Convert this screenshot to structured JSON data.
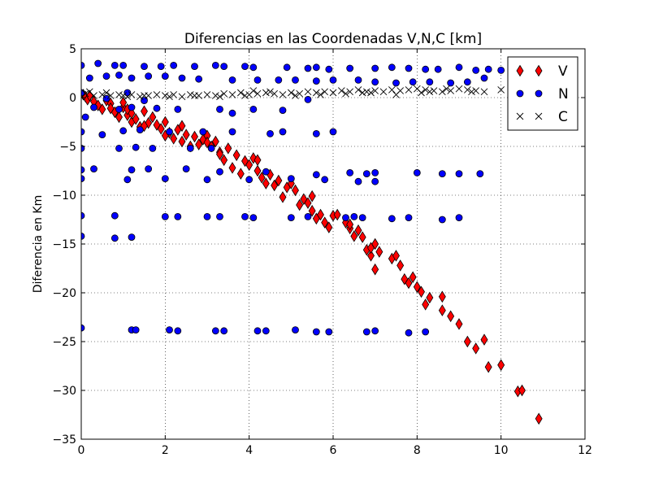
{
  "chart_data": {
    "type": "scatter",
    "title": "Diferencias en las Coordenadas V,N,C [km]",
    "xlabel": "",
    "ylabel": "Diferencia en Km",
    "xlim": [
      0,
      12
    ],
    "ylim": [
      -35,
      5
    ],
    "x_ticks": [
      0,
      2,
      4,
      6,
      8,
      10,
      12
    ],
    "y_ticks": [
      5,
      0,
      -5,
      -10,
      -15,
      -20,
      -25,
      -30,
      -35
    ],
    "x_tick_labels": [
      "0",
      "2",
      "4",
      "6",
      "8",
      "10",
      "12"
    ],
    "y_tick_labels": [
      "5",
      "0",
      "−5",
      "−10",
      "−15",
      "−20",
      "−25",
      "−30",
      "−35"
    ],
    "grid": true,
    "legend_position": "top-right",
    "series": [
      {
        "name": "V",
        "marker": "diamond",
        "color": "#ff0000",
        "points": [
          [
            0.05,
            0.3
          ],
          [
            0.1,
            0.1
          ],
          [
            0.15,
            -0.2
          ],
          [
            0.2,
            0.2
          ],
          [
            0.3,
            -0.4
          ],
          [
            0.4,
            -0.8
          ],
          [
            0.5,
            -1.2
          ],
          [
            0.6,
            -0.3
          ],
          [
            0.7,
            -0.6
          ],
          [
            0.8,
            -1.5
          ],
          [
            0.9,
            -2.0
          ],
          [
            1.0,
            -1.0
          ],
          [
            1.1,
            -1.8
          ],
          [
            1.2,
            -2.5
          ],
          [
            1.3,
            -2.2
          ],
          [
            1.4,
            -3.0
          ],
          [
            1.5,
            -1.4
          ],
          [
            1.6,
            -2.6
          ],
          [
            1.7,
            -2.0
          ],
          [
            1.8,
            -2.8
          ],
          [
            1.9,
            -3.2
          ],
          [
            2.0,
            -2.5
          ],
          [
            2.1,
            -3.6
          ],
          [
            2.2,
            -4.2
          ],
          [
            2.3,
            -3.3
          ],
          [
            2.4,
            -4.5
          ],
          [
            2.5,
            -3.8
          ],
          [
            2.6,
            -5.0
          ],
          [
            2.7,
            -4.0
          ],
          [
            2.8,
            -4.8
          ],
          [
            2.9,
            -4.3
          ],
          [
            3.0,
            -3.9
          ],
          [
            3.1,
            -5.0
          ],
          [
            3.2,
            -4.5
          ],
          [
            3.3,
            -5.6
          ],
          [
            3.4,
            -6.4
          ],
          [
            3.5,
            -5.2
          ],
          [
            3.6,
            -7.2
          ],
          [
            3.7,
            -5.9
          ],
          [
            3.8,
            -7.8
          ],
          [
            3.9,
            -6.5
          ],
          [
            4.0,
            -6.9
          ],
          [
            4.1,
            -6.2
          ],
          [
            4.2,
            -7.5
          ],
          [
            4.3,
            -8.2
          ],
          [
            4.4,
            -8.8
          ],
          [
            4.5,
            -7.9
          ],
          [
            4.6,
            -9.0
          ],
          [
            4.7,
            -8.5
          ],
          [
            4.8,
            -10.2
          ],
          [
            4.9,
            -9.2
          ],
          [
            5.0,
            -8.8
          ],
          [
            5.1,
            -9.5
          ],
          [
            5.2,
            -11.0
          ],
          [
            5.3,
            -10.4
          ],
          [
            5.4,
            -10.8
          ],
          [
            5.5,
            -11.6
          ],
          [
            5.6,
            -12.4
          ],
          [
            5.7,
            -12.0
          ],
          [
            5.8,
            -12.8
          ],
          [
            5.9,
            -13.3
          ],
          [
            6.0,
            -12.1
          ],
          [
            6.1,
            -12.0
          ],
          [
            6.3,
            -12.8
          ],
          [
            6.4,
            -13.4
          ],
          [
            6.5,
            -14.2
          ],
          [
            6.6,
            -13.6
          ],
          [
            6.7,
            -14.3
          ],
          [
            6.8,
            -15.6
          ],
          [
            6.9,
            -16.2
          ],
          [
            7.0,
            -15.0
          ],
          [
            7.1,
            -15.8
          ],
          [
            7.4,
            -16.5
          ],
          [
            7.5,
            -16.2
          ],
          [
            7.6,
            -17.2
          ],
          [
            7.7,
            -18.6
          ],
          [
            7.8,
            -19.0
          ],
          [
            7.9,
            -18.4
          ],
          [
            8.0,
            -19.4
          ],
          [
            8.2,
            -21.2
          ],
          [
            8.3,
            -20.5
          ],
          [
            8.6,
            -20.4
          ],
          [
            8.6,
            -21.8
          ],
          [
            8.8,
            -22.4
          ],
          [
            9.0,
            -23.2
          ],
          [
            9.2,
            -25.0
          ],
          [
            9.4,
            -25.7
          ],
          [
            9.6,
            -24.8
          ],
          [
            9.7,
            -27.6
          ],
          [
            10.0,
            -27.4
          ],
          [
            10.4,
            -30.1
          ],
          [
            10.5,
            -30.0
          ],
          [
            10.9,
            -32.9
          ],
          [
            1.0,
            -0.5
          ],
          [
            1.2,
            -1.6
          ],
          [
            0.7,
            -1.1
          ],
          [
            1.5,
            -2.9
          ],
          [
            2.0,
            -3.9
          ],
          [
            3.3,
            -5.8
          ],
          [
            4.2,
            -6.4
          ],
          [
            5.5,
            -10.1
          ],
          [
            6.4,
            -13.0
          ],
          [
            7.0,
            -17.6
          ],
          [
            8.1,
            -19.9
          ],
          [
            6.9,
            -15.4
          ],
          [
            3.0,
            -4.6
          ],
          [
            2.4,
            -2.9
          ],
          [
            1.1,
            -1.2
          ]
        ]
      },
      {
        "name": "N",
        "marker": "circle",
        "color": "#0000ff",
        "points": [
          [
            0.0,
            3.3
          ],
          [
            0.4,
            3.5
          ],
          [
            0.8,
            3.3
          ],
          [
            1.0,
            3.3
          ],
          [
            1.5,
            3.2
          ],
          [
            1.9,
            3.2
          ],
          [
            2.2,
            3.3
          ],
          [
            2.7,
            3.2
          ],
          [
            3.2,
            3.3
          ],
          [
            3.4,
            3.2
          ],
          [
            3.9,
            3.2
          ],
          [
            4.1,
            3.1
          ],
          [
            4.9,
            3.1
          ],
          [
            5.4,
            3.0
          ],
          [
            5.6,
            3.1
          ],
          [
            5.9,
            2.9
          ],
          [
            6.4,
            3.0
          ],
          [
            7.0,
            3.0
          ],
          [
            7.4,
            3.1
          ],
          [
            7.8,
            3.0
          ],
          [
            8.2,
            2.9
          ],
          [
            8.5,
            2.9
          ],
          [
            9.0,
            3.1
          ],
          [
            9.4,
            2.8
          ],
          [
            9.7,
            2.9
          ],
          [
            10.0,
            2.8
          ],
          [
            0.2,
            2.0
          ],
          [
            0.6,
            2.2
          ],
          [
            0.9,
            2.3
          ],
          [
            1.2,
            2.0
          ],
          [
            1.6,
            2.2
          ],
          [
            2.0,
            2.2
          ],
          [
            2.4,
            2.0
          ],
          [
            2.8,
            1.9
          ],
          [
            3.6,
            1.8
          ],
          [
            4.2,
            1.8
          ],
          [
            4.7,
            1.8
          ],
          [
            5.1,
            1.8
          ],
          [
            5.6,
            1.7
          ],
          [
            6.0,
            1.8
          ],
          [
            6.6,
            1.8
          ],
          [
            7.0,
            1.6
          ],
          [
            7.5,
            1.5
          ],
          [
            7.9,
            1.6
          ],
          [
            8.3,
            1.6
          ],
          [
            8.8,
            1.5
          ],
          [
            9.2,
            1.6
          ],
          [
            9.6,
            2.0
          ],
          [
            0.0,
            0.5
          ],
          [
            1.1,
            0.5
          ],
          [
            0.3,
            -1.0
          ],
          [
            0.9,
            -1.2
          ],
          [
            1.2,
            -1.0
          ],
          [
            1.8,
            -1.1
          ],
          [
            2.3,
            -1.2
          ],
          [
            3.3,
            -1.2
          ],
          [
            3.6,
            -1.6
          ],
          [
            4.1,
            -1.2
          ],
          [
            4.8,
            -1.3
          ],
          [
            5.4,
            -0.2
          ],
          [
            0.0,
            -3.5
          ],
          [
            0.5,
            -3.8
          ],
          [
            1.0,
            -3.4
          ],
          [
            1.4,
            -3.3
          ],
          [
            2.1,
            -3.5
          ],
          [
            2.9,
            -3.5
          ],
          [
            3.6,
            -3.5
          ],
          [
            4.5,
            -3.7
          ],
          [
            4.8,
            -3.5
          ],
          [
            5.6,
            -3.7
          ],
          [
            6.0,
            -3.5
          ],
          [
            0.0,
            -5.2
          ],
          [
            0.9,
            -5.2
          ],
          [
            1.3,
            -5.1
          ],
          [
            1.7,
            -5.2
          ],
          [
            2.6,
            -5.2
          ],
          [
            3.1,
            -5.2
          ],
          [
            0.0,
            -7.4
          ],
          [
            0.3,
            -7.3
          ],
          [
            1.2,
            -7.4
          ],
          [
            1.6,
            -7.3
          ],
          [
            2.5,
            -7.3
          ],
          [
            3.3,
            -7.6
          ],
          [
            4.4,
            -7.6
          ],
          [
            5.6,
            -7.9
          ],
          [
            6.4,
            -7.7
          ],
          [
            6.8,
            -7.8
          ],
          [
            7.0,
            -7.7
          ],
          [
            8.0,
            -7.7
          ],
          [
            8.6,
            -7.8
          ],
          [
            9.0,
            -7.8
          ],
          [
            9.5,
            -7.8
          ],
          [
            0.0,
            -8.3
          ],
          [
            1.1,
            -8.4
          ],
          [
            2.0,
            -8.3
          ],
          [
            3.0,
            -8.4
          ],
          [
            4.0,
            -8.4
          ],
          [
            5.0,
            -8.3
          ],
          [
            5.8,
            -8.4
          ],
          [
            6.6,
            -8.6
          ],
          [
            7.0,
            -8.6
          ],
          [
            0.0,
            -12.1
          ],
          [
            0.8,
            -12.1
          ],
          [
            2.0,
            -12.2
          ],
          [
            2.3,
            -12.2
          ],
          [
            3.0,
            -12.2
          ],
          [
            3.3,
            -12.2
          ],
          [
            3.9,
            -12.2
          ],
          [
            4.1,
            -12.3
          ],
          [
            5.0,
            -12.3
          ],
          [
            5.4,
            -12.2
          ],
          [
            6.3,
            -12.3
          ],
          [
            6.5,
            -12.2
          ],
          [
            6.7,
            -12.3
          ],
          [
            7.4,
            -12.4
          ],
          [
            7.8,
            -12.3
          ],
          [
            8.6,
            -12.5
          ],
          [
            9.0,
            -12.3
          ],
          [
            0.0,
            -14.2
          ],
          [
            0.8,
            -14.4
          ],
          [
            1.2,
            -14.3
          ],
          [
            0.0,
            -23.6
          ],
          [
            1.2,
            -23.8
          ],
          [
            1.3,
            -23.8
          ],
          [
            2.1,
            -23.8
          ],
          [
            2.3,
            -23.9
          ],
          [
            3.2,
            -23.9
          ],
          [
            3.4,
            -23.9
          ],
          [
            4.2,
            -23.9
          ],
          [
            4.4,
            -23.9
          ],
          [
            5.1,
            -23.8
          ],
          [
            5.6,
            -24.0
          ],
          [
            5.9,
            -24.0
          ],
          [
            6.8,
            -24.0
          ],
          [
            7.0,
            -23.9
          ],
          [
            7.8,
            -24.1
          ],
          [
            8.2,
            -24.0
          ],
          [
            0.1,
            -2.0
          ],
          [
            0.6,
            -0.1
          ],
          [
            1.5,
            -0.3
          ]
        ]
      },
      {
        "name": "C",
        "marker": "x",
        "color": "#000000",
        "points": [
          [
            0.1,
            0.4
          ],
          [
            0.3,
            0.2
          ],
          [
            0.5,
            0.3
          ],
          [
            0.7,
            0.2
          ],
          [
            0.9,
            0.3
          ],
          [
            1.0,
            0.2
          ],
          [
            1.2,
            0.3
          ],
          [
            1.4,
            0.1
          ],
          [
            1.6,
            0.2
          ],
          [
            1.8,
            0.3
          ],
          [
            2.0,
            0.2
          ],
          [
            2.2,
            0.3
          ],
          [
            2.4,
            0.1
          ],
          [
            2.6,
            0.3
          ],
          [
            2.8,
            0.2
          ],
          [
            3.0,
            0.3
          ],
          [
            3.2,
            0.2
          ],
          [
            3.4,
            0.4
          ],
          [
            3.6,
            0.3
          ],
          [
            3.8,
            0.5
          ],
          [
            4.0,
            0.3
          ],
          [
            4.2,
            0.4
          ],
          [
            4.4,
            0.5
          ],
          [
            4.6,
            0.4
          ],
          [
            4.8,
            0.3
          ],
          [
            5.0,
            0.5
          ],
          [
            5.2,
            0.4
          ],
          [
            5.4,
            0.6
          ],
          [
            5.6,
            0.5
          ],
          [
            5.8,
            0.6
          ],
          [
            6.0,
            0.5
          ],
          [
            6.2,
            0.7
          ],
          [
            6.4,
            0.6
          ],
          [
            6.6,
            0.8
          ],
          [
            6.8,
            0.6
          ],
          [
            7.0,
            0.7
          ],
          [
            7.2,
            0.6
          ],
          [
            7.4,
            0.8
          ],
          [
            7.6,
            0.7
          ],
          [
            7.8,
            0.8
          ],
          [
            8.0,
            0.9
          ],
          [
            8.2,
            0.8
          ],
          [
            8.4,
            0.7
          ],
          [
            8.6,
            0.6
          ],
          [
            8.8,
            0.7
          ],
          [
            9.0,
            0.9
          ],
          [
            9.2,
            0.8
          ],
          [
            9.4,
            0.7
          ],
          [
            9.6,
            0.6
          ],
          [
            10.0,
            0.8
          ],
          [
            0.2,
            0.6
          ],
          [
            0.6,
            0.5
          ],
          [
            1.1,
            0.1
          ],
          [
            1.5,
            0.2
          ],
          [
            2.1,
            0.1
          ],
          [
            2.7,
            0.2
          ],
          [
            3.3,
            0.1
          ],
          [
            3.9,
            0.2
          ],
          [
            4.5,
            0.6
          ],
          [
            5.1,
            0.2
          ],
          [
            5.7,
            0.3
          ],
          [
            6.3,
            0.4
          ],
          [
            6.9,
            0.5
          ],
          [
            7.5,
            0.3
          ],
          [
            8.1,
            0.5
          ],
          [
            8.7,
            0.9
          ],
          [
            9.3,
            0.6
          ],
          [
            4.1,
            0.7
          ],
          [
            6.7,
            0.5
          ],
          [
            8.3,
            0.6
          ]
        ]
      }
    ]
  }
}
